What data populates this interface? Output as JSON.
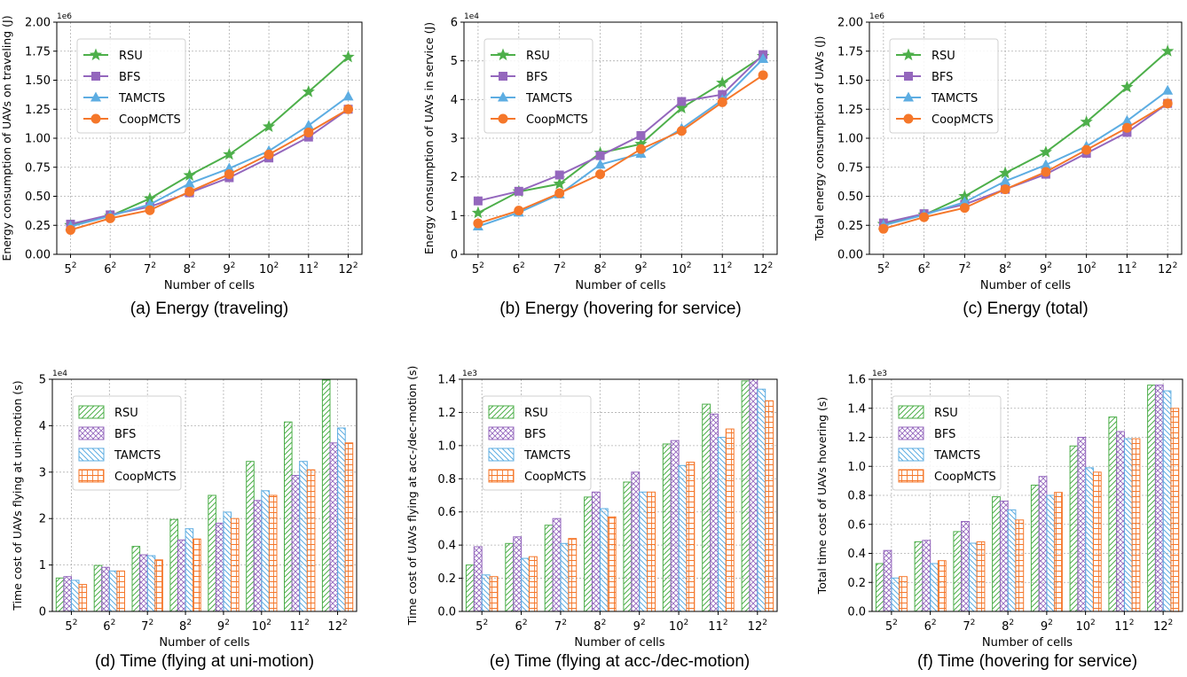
{
  "colors": {
    "RSU": "#4daf4a",
    "BFS": "#9467bd",
    "TAMCTS": "#5dade2",
    "CoopMCTS": "#f5772a"
  },
  "chart_data": [
    {
      "type": "line",
      "caption": "(a) Energy (traveling)",
      "ylabel": "Energy consumption of UAVs on traveling (J)",
      "xlabel": "Number of cells",
      "y_multiplier": "1e6",
      "categories": [
        "5",
        "6",
        "7",
        "8",
        "9",
        "10",
        "11",
        "12"
      ],
      "ylim": [
        0,
        2.0
      ],
      "yticks": [
        0.0,
        0.25,
        0.5,
        0.75,
        1.0,
        1.25,
        1.5,
        1.75,
        2.0
      ],
      "ytick_labels": [
        "0.00",
        "0.25",
        "0.50",
        "0.75",
        "1.00",
        "1.25",
        "1.50",
        "1.75",
        "2.00"
      ],
      "grid": true,
      "legend": "top-left",
      "series": [
        {
          "name": "RSU",
          "marker": "star",
          "values": [
            0.25,
            0.33,
            0.48,
            0.68,
            0.86,
            1.1,
            1.4,
            1.7
          ]
        },
        {
          "name": "BFS",
          "marker": "square",
          "values": [
            0.26,
            0.34,
            0.41,
            0.53,
            0.66,
            0.83,
            1.01,
            1.25
          ]
        },
        {
          "name": "TAMCTS",
          "marker": "triangle",
          "values": [
            0.24,
            0.33,
            0.43,
            0.61,
            0.74,
            0.89,
            1.11,
            1.36
          ]
        },
        {
          "name": "CoopMCTS",
          "marker": "circle",
          "values": [
            0.21,
            0.31,
            0.38,
            0.54,
            0.69,
            0.86,
            1.05,
            1.25
          ]
        }
      ]
    },
    {
      "type": "line",
      "caption": "(b) Energy (hovering for service)",
      "ylabel": "Energy consumption of UAVs in service (J)",
      "xlabel": "Number of cells",
      "y_multiplier": "1e4",
      "categories": [
        "5",
        "6",
        "7",
        "8",
        "9",
        "10",
        "11",
        "12"
      ],
      "ylim": [
        0,
        6
      ],
      "yticks": [
        0,
        1,
        2,
        3,
        4,
        5,
        6
      ],
      "ytick_labels": [
        "0",
        "1",
        "2",
        "3",
        "4",
        "5",
        "6"
      ],
      "grid": true,
      "legend": "top-left",
      "series": [
        {
          "name": "RSU",
          "marker": "star",
          "values": [
            1.07,
            1.62,
            1.82,
            2.62,
            2.85,
            3.78,
            4.43,
            5.12
          ]
        },
        {
          "name": "BFS",
          "marker": "square",
          "values": [
            1.38,
            1.63,
            2.05,
            2.55,
            3.07,
            3.95,
            4.13,
            5.16
          ]
        },
        {
          "name": "TAMCTS",
          "marker": "triangle",
          "values": [
            0.72,
            1.08,
            1.55,
            2.32,
            2.6,
            3.25,
            3.99,
            5.05
          ]
        },
        {
          "name": "CoopMCTS",
          "marker": "circle",
          "values": [
            0.8,
            1.13,
            1.58,
            2.07,
            2.72,
            3.19,
            3.93,
            4.63
          ]
        }
      ]
    },
    {
      "type": "line",
      "caption": "(c) Energy (total)",
      "ylabel": "Total energy consumption of UAVs (J)",
      "xlabel": "Number of cells",
      "y_multiplier": "1e6",
      "categories": [
        "5",
        "6",
        "7",
        "8",
        "9",
        "10",
        "11",
        "12"
      ],
      "ylim": [
        0,
        2.0
      ],
      "yticks": [
        0.0,
        0.25,
        0.5,
        0.75,
        1.0,
        1.25,
        1.5,
        1.75,
        2.0
      ],
      "ytick_labels": [
        "0.00",
        "0.25",
        "0.50",
        "0.75",
        "1.00",
        "1.25",
        "1.50",
        "1.75",
        "2.00"
      ],
      "grid": true,
      "legend": "top-left",
      "series": [
        {
          "name": "RSU",
          "marker": "star",
          "values": [
            0.26,
            0.34,
            0.5,
            0.7,
            0.88,
            1.14,
            1.44,
            1.75
          ]
        },
        {
          "name": "BFS",
          "marker": "square",
          "values": [
            0.27,
            0.35,
            0.43,
            0.56,
            0.69,
            0.87,
            1.05,
            1.3
          ]
        },
        {
          "name": "TAMCTS",
          "marker": "triangle",
          "values": [
            0.25,
            0.34,
            0.45,
            0.63,
            0.77,
            0.93,
            1.15,
            1.41
          ]
        },
        {
          "name": "CoopMCTS",
          "marker": "circle",
          "values": [
            0.22,
            0.32,
            0.4,
            0.56,
            0.71,
            0.9,
            1.09,
            1.3
          ]
        }
      ]
    },
    {
      "type": "bar",
      "caption": "(d) Time (flying at uni-motion)",
      "ylabel": "Time cost of UAVs flying at uni-motion (s)",
      "xlabel": "Number of cells",
      "y_multiplier": "1e4",
      "categories": [
        "5",
        "6",
        "7",
        "8",
        "9",
        "10",
        "11",
        "12"
      ],
      "ylim": [
        0,
        5
      ],
      "yticks": [
        0,
        1,
        2,
        3,
        4,
        5
      ],
      "ytick_labels": [
        "0",
        "1",
        "2",
        "3",
        "4",
        "5"
      ],
      "grid": true,
      "legend": "top-left",
      "series": [
        {
          "name": "RSU",
          "hatch": "diag",
          "values": [
            0.72,
            0.99,
            1.4,
            1.98,
            2.5,
            3.23,
            4.08,
            4.98
          ]
        },
        {
          "name": "BFS",
          "hatch": "cross",
          "values": [
            0.75,
            0.95,
            1.22,
            1.54,
            1.9,
            2.39,
            2.93,
            3.63
          ]
        },
        {
          "name": "TAMCTS",
          "hatch": "backdiag",
          "values": [
            0.67,
            0.87,
            1.2,
            1.78,
            2.14,
            2.6,
            3.23,
            3.95
          ]
        },
        {
          "name": "CoopMCTS",
          "hatch": "grid",
          "values": [
            0.58,
            0.87,
            1.11,
            1.56,
            2.0,
            2.5,
            3.05,
            3.63
          ]
        }
      ]
    },
    {
      "type": "bar",
      "caption": "(e) Time (flying at acc-/dec-motion)",
      "ylabel": "Time cost of UAVs flying at acc-/dec-motion (s)",
      "xlabel": "Number of cells",
      "y_multiplier": "1e3",
      "categories": [
        "5",
        "6",
        "7",
        "8",
        "9",
        "10",
        "11",
        "12"
      ],
      "ylim": [
        0,
        1.4
      ],
      "yticks": [
        0.0,
        0.2,
        0.4,
        0.6,
        0.8,
        1.0,
        1.2,
        1.4
      ],
      "ytick_labels": [
        "0.0",
        "0.2",
        "0.4",
        "0.6",
        "0.8",
        "1.0",
        "1.2",
        "1.4"
      ],
      "grid": true,
      "legend": "top-left",
      "series": [
        {
          "name": "RSU",
          "hatch": "diag",
          "values": [
            0.28,
            0.41,
            0.52,
            0.69,
            0.78,
            1.01,
            1.25,
            1.39
          ]
        },
        {
          "name": "BFS",
          "hatch": "cross",
          "values": [
            0.39,
            0.45,
            0.56,
            0.72,
            0.84,
            1.03,
            1.19,
            1.41
          ]
        },
        {
          "name": "TAMCTS",
          "hatch": "backdiag",
          "values": [
            0.22,
            0.32,
            0.41,
            0.62,
            0.72,
            0.88,
            1.05,
            1.34
          ]
        },
        {
          "name": "CoopMCTS",
          "hatch": "grid",
          "values": [
            0.21,
            0.33,
            0.44,
            0.57,
            0.72,
            0.9,
            1.1,
            1.27
          ]
        }
      ]
    },
    {
      "type": "bar",
      "caption": "(f) Time (hovering for service)",
      "ylabel": "Total time cost of UAVs hovering (s)",
      "xlabel": "Number of cells",
      "y_multiplier": "1e3",
      "categories": [
        "5",
        "6",
        "7",
        "8",
        "9",
        "10",
        "11",
        "12"
      ],
      "ylim": [
        0,
        1.6
      ],
      "yticks": [
        0.0,
        0.2,
        0.4,
        0.6,
        0.8,
        1.0,
        1.2,
        1.4,
        1.6
      ],
      "ytick_labels": [
        "0.0",
        "0.2",
        "0.4",
        "0.6",
        "0.8",
        "1.0",
        "1.2",
        "1.4",
        "1.6"
      ],
      "grid": true,
      "legend": "top-left",
      "series": [
        {
          "name": "RSU",
          "hatch": "diag",
          "values": [
            0.33,
            0.48,
            0.55,
            0.79,
            0.87,
            1.14,
            1.34,
            1.56
          ]
        },
        {
          "name": "BFS",
          "hatch": "cross",
          "values": [
            0.42,
            0.49,
            0.62,
            0.76,
            0.93,
            1.2,
            1.24,
            1.56
          ]
        },
        {
          "name": "TAMCTS",
          "hatch": "backdiag",
          "values": [
            0.23,
            0.33,
            0.47,
            0.7,
            0.8,
            0.99,
            1.19,
            1.52
          ]
        },
        {
          "name": "CoopMCTS",
          "hatch": "grid",
          "values": [
            0.24,
            0.35,
            0.48,
            0.63,
            0.82,
            0.96,
            1.19,
            1.4
          ]
        }
      ]
    }
  ]
}
